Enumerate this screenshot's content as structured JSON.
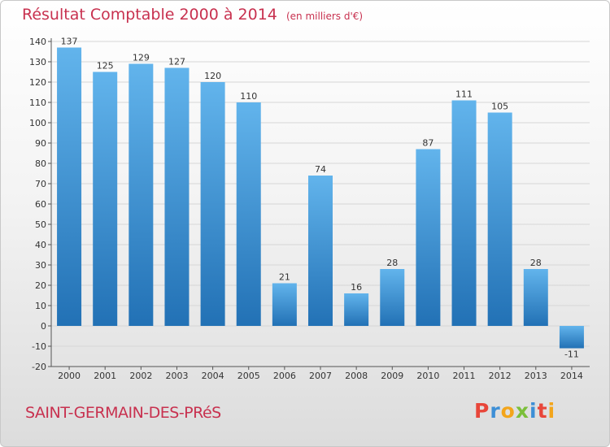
{
  "header": {
    "title": "Résultat Comptable 2000 à 2014",
    "subtitle": "(en milliers d'€)"
  },
  "footer": {
    "place_name": "SAINT-GERMAIN-DES-PRéS",
    "logo_text": "Proxiti",
    "logo_colors": [
      "#e8463a",
      "#3d8fd6",
      "#f3a51b",
      "#7bbf3a",
      "#3d8fd6",
      "#e8463a",
      "#f3a51b"
    ]
  },
  "colors": {
    "title": "#c8314f",
    "bar_light": "#62b4ec",
    "bar_dark": "#2271b5",
    "axis": "#555555",
    "grid": "#d6d6d6"
  },
  "chart_data": {
    "type": "bar",
    "title": "Résultat Comptable 2000 à 2014",
    "subtitle": "(en milliers d'€)",
    "categories": [
      "2000",
      "2001",
      "2002",
      "2003",
      "2004",
      "2005",
      "2006",
      "2007",
      "2008",
      "2009",
      "2010",
      "2011",
      "2012",
      "2013",
      "2014"
    ],
    "values": [
      137,
      125,
      129,
      127,
      120,
      110,
      21,
      74,
      16,
      28,
      87,
      111,
      105,
      28,
      -11
    ],
    "value_labels": [
      "137",
      "125",
      "129",
      "127",
      "120",
      "110",
      "21",
      "74",
      "16",
      "28",
      "87",
      "111",
      "105",
      "28",
      "-11"
    ],
    "ylim": [
      -20,
      140
    ],
    "yticks": [
      -20,
      -10,
      0,
      10,
      20,
      30,
      40,
      50,
      60,
      70,
      80,
      90,
      100,
      110,
      120,
      130,
      140
    ],
    "grid": true,
    "legend": "none",
    "xlabel": "",
    "ylabel": ""
  }
}
